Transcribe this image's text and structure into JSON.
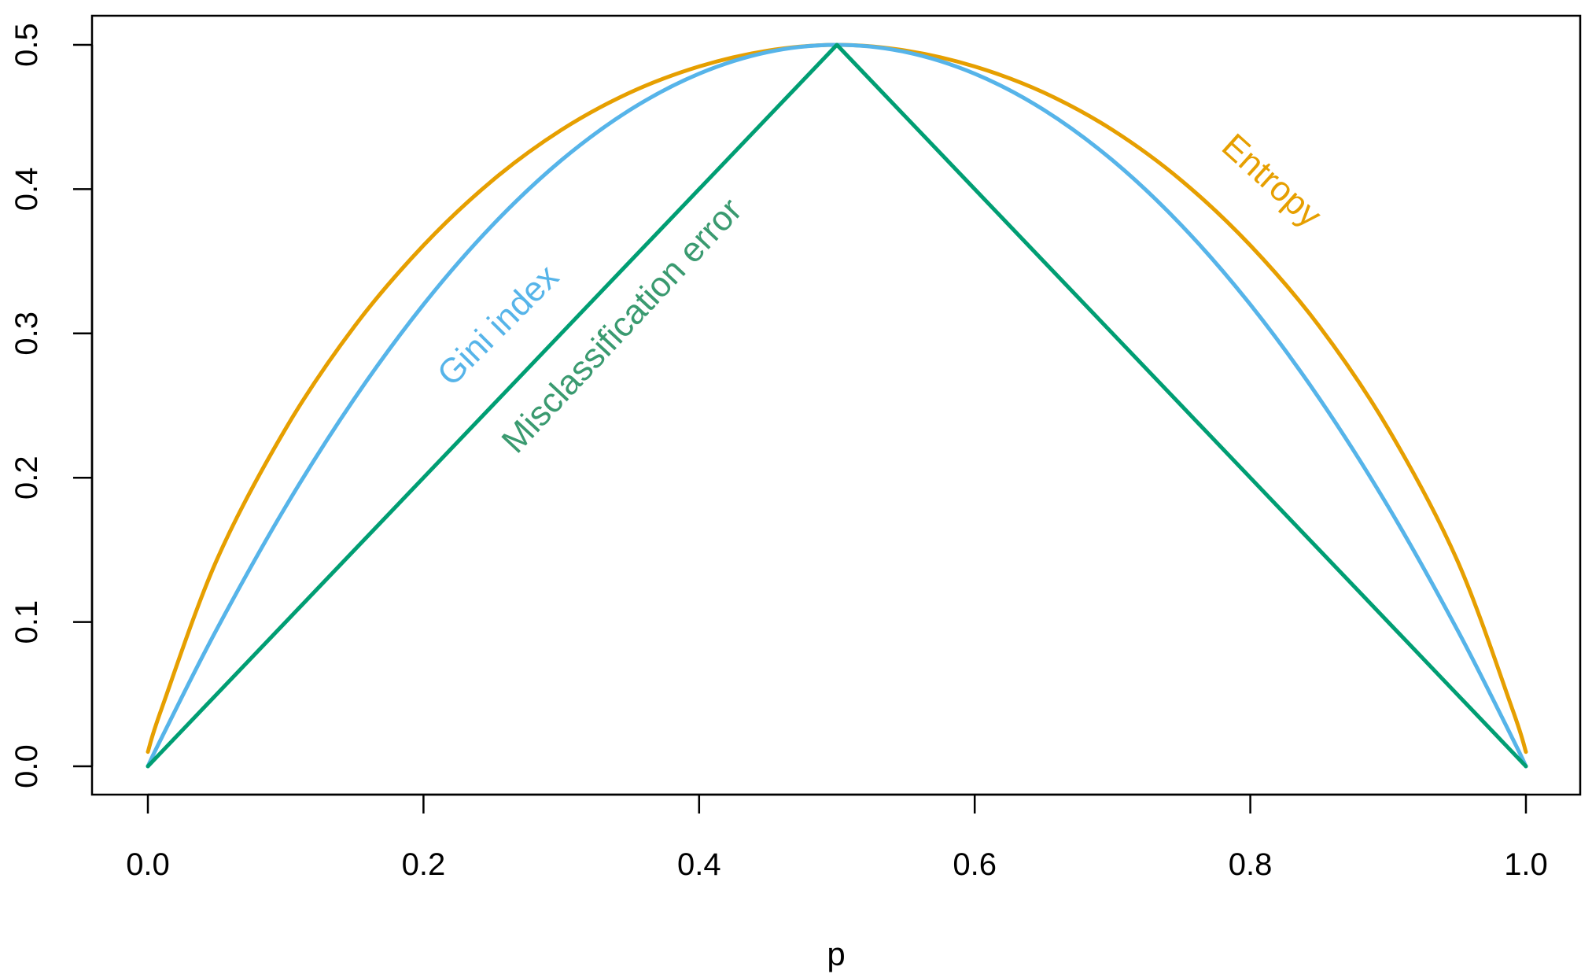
{
  "chart_data": {
    "type": "line",
    "title": "",
    "xlabel": "p",
    "ylabel": "",
    "xlim": [
      0,
      1
    ],
    "ylim": [
      0,
      0.5
    ],
    "x_ticks": [
      {
        "value": 0.0,
        "label": "0.0"
      },
      {
        "value": 0.2,
        "label": "0.2"
      },
      {
        "value": 0.4,
        "label": "0.4"
      },
      {
        "value": 0.6,
        "label": "0.6"
      },
      {
        "value": 0.8,
        "label": "0.8"
      },
      {
        "value": 1.0,
        "label": "1.0"
      }
    ],
    "y_ticks": [
      {
        "value": 0.0,
        "label": "0.0"
      },
      {
        "value": 0.1,
        "label": "0.1"
      },
      {
        "value": 0.2,
        "label": "0.2"
      },
      {
        "value": 0.3,
        "label": "0.3"
      },
      {
        "value": 0.4,
        "label": "0.4"
      },
      {
        "value": 0.5,
        "label": "0.5"
      }
    ],
    "grid": false,
    "legend": "none",
    "x": [
      0.0,
      0.01,
      0.05,
      0.1,
      0.15,
      0.2,
      0.25,
      0.3,
      0.35,
      0.4,
      0.45,
      0.5,
      0.55,
      0.6,
      0.65,
      0.7,
      0.75,
      0.8,
      0.85,
      0.9,
      0.95,
      0.99,
      1.0
    ],
    "series": [
      {
        "name": "Entropy",
        "color": "#E69F00",
        "values": [
          0.01,
          0.04,
          0.143,
          0.234,
          0.305,
          0.361,
          0.406,
          0.441,
          0.467,
          0.485,
          0.496,
          0.5,
          0.496,
          0.485,
          0.467,
          0.441,
          0.406,
          0.361,
          0.305,
          0.234,
          0.143,
          0.04,
          0.01
        ]
      },
      {
        "name": "Gini index",
        "color": "#56B4E9",
        "values": [
          0.0,
          0.0198,
          0.095,
          0.18,
          0.255,
          0.32,
          0.375,
          0.42,
          0.455,
          0.48,
          0.495,
          0.5,
          0.495,
          0.48,
          0.455,
          0.42,
          0.375,
          0.32,
          0.255,
          0.18,
          0.095,
          0.0198,
          0.0
        ]
      },
      {
        "name": "Misclassification error",
        "color": "#009E73",
        "values": [
          0.0,
          0.01,
          0.05,
          0.1,
          0.15,
          0.2,
          0.25,
          0.3,
          0.35,
          0.4,
          0.45,
          0.5,
          0.45,
          0.4,
          0.35,
          0.3,
          0.25,
          0.2,
          0.15,
          0.1,
          0.05,
          0.01,
          0.0
        ]
      }
    ],
    "annotations": [
      {
        "text": "Gini index",
        "series": "Gini index",
        "x": 0.26,
        "y": 0.3,
        "color": "#56B4E9"
      },
      {
        "text": "Misclassification error",
        "series": "Misclassification error",
        "x": 0.35,
        "y": 0.3,
        "color": "#3A9A70"
      },
      {
        "text": "Entropy",
        "series": "Entropy",
        "x": 0.81,
        "y": 0.4,
        "color": "#E69F00"
      }
    ]
  }
}
